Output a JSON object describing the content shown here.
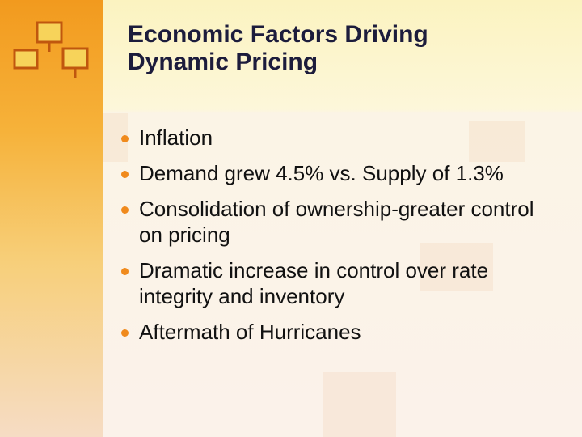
{
  "slide": {
    "title": "Economic Factors Driving Dynamic Pricing",
    "bullets": [
      "Inflation",
      "Demand grew 4.5% vs. Supply of 1.3%",
      "Consolidation of ownership-greater control on pricing",
      "Dramatic increase in control over rate integrity and inventory",
      "Aftermath of Hurricanes"
    ]
  }
}
